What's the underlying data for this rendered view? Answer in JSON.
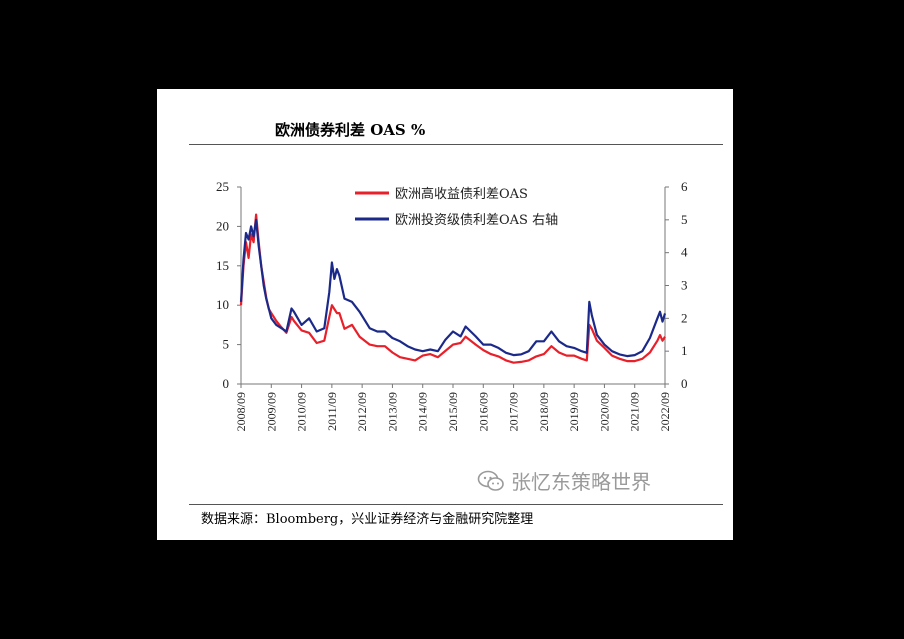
{
  "page": {
    "title": "欧洲债券利差 OAS %",
    "source": "数据来源：Bloomberg，兴业证券经济与金融研究院整理",
    "watermark": "张忆东策略世界"
  },
  "chart_data": {
    "type": "line",
    "title": "欧洲债券利差 OAS %",
    "x_labels": [
      "2008/09",
      "2009/09",
      "2010/09",
      "2011/09",
      "2012/09",
      "2013/09",
      "2014/09",
      "2015/09",
      "2016/09",
      "2017/09",
      "2018/09",
      "2019/09",
      "2020/09",
      "2021/09",
      "2022/09"
    ],
    "y_left": {
      "ticks": [
        0,
        5,
        10,
        15,
        20,
        25
      ],
      "range": [
        0,
        25
      ]
    },
    "y_right": {
      "ticks": [
        0,
        1,
        2,
        3,
        4,
        5,
        6
      ],
      "range": [
        0,
        6
      ]
    },
    "legend_position": "top-right",
    "grid": false,
    "series": [
      {
        "name": "欧洲高收益债利差OAS",
        "axis": "left",
        "color": "#e8202a",
        "points": [
          [
            "2008/09",
            10
          ],
          [
            "2008/10",
            15
          ],
          [
            "2008/11",
            18
          ],
          [
            "2008/12",
            16
          ],
          [
            "2009/01",
            19
          ],
          [
            "2009/02",
            18
          ],
          [
            "2009/03",
            21.5
          ],
          [
            "2009/04",
            18
          ],
          [
            "2009/05",
            15
          ],
          [
            "2009/06",
            13
          ],
          [
            "2009/07",
            11
          ],
          [
            "2009/08",
            9.5
          ],
          [
            "2009/09",
            9
          ],
          [
            "2009/11",
            8
          ],
          [
            "2010/01",
            7.2
          ],
          [
            "2010/03",
            6.5
          ],
          [
            "2010/05",
            8.5
          ],
          [
            "2010/06",
            8
          ],
          [
            "2010/09",
            6.8
          ],
          [
            "2010/12",
            6.5
          ],
          [
            "2011/03",
            5.2
          ],
          [
            "2011/06",
            5.5
          ],
          [
            "2011/08",
            8.5
          ],
          [
            "2011/09",
            10
          ],
          [
            "2011/10",
            9.5
          ],
          [
            "2011/11",
            9
          ],
          [
            "2011/12",
            9
          ],
          [
            "2012/02",
            7
          ],
          [
            "2012/05",
            7.5
          ],
          [
            "2012/08",
            6
          ],
          [
            "2012/12",
            5
          ],
          [
            "2013/03",
            4.8
          ],
          [
            "2013/06",
            4.8
          ],
          [
            "2013/09",
            4
          ],
          [
            "2013/12",
            3.4
          ],
          [
            "2014/03",
            3.2
          ],
          [
            "2014/06",
            3
          ],
          [
            "2014/09",
            3.6
          ],
          [
            "2014/12",
            3.8
          ],
          [
            "2015/03",
            3.4
          ],
          [
            "2015/06",
            4.2
          ],
          [
            "2015/09",
            5
          ],
          [
            "2015/12",
            5.2
          ],
          [
            "2016/02",
            6
          ],
          [
            "2016/06",
            5
          ],
          [
            "2016/09",
            4.3
          ],
          [
            "2016/12",
            3.8
          ],
          [
            "2017/03",
            3.5
          ],
          [
            "2017/06",
            3
          ],
          [
            "2017/09",
            2.7
          ],
          [
            "2017/12",
            2.8
          ],
          [
            "2018/03",
            3
          ],
          [
            "2018/06",
            3.5
          ],
          [
            "2018/09",
            3.8
          ],
          [
            "2018/12",
            4.8
          ],
          [
            "2019/03",
            4
          ],
          [
            "2019/06",
            3.6
          ],
          [
            "2019/09",
            3.6
          ],
          [
            "2019/12",
            3.2
          ],
          [
            "2020/02",
            3
          ],
          [
            "2020/03",
            7.5
          ],
          [
            "2020/04",
            7
          ],
          [
            "2020/06",
            5.5
          ],
          [
            "2020/09",
            4.6
          ],
          [
            "2020/12",
            3.6
          ],
          [
            "2021/03",
            3.2
          ],
          [
            "2021/06",
            2.9
          ],
          [
            "2021/09",
            2.9
          ],
          [
            "2021/12",
            3.2
          ],
          [
            "2022/03",
            4
          ],
          [
            "2022/06",
            5.5
          ],
          [
            "2022/07",
            6.2
          ],
          [
            "2022/08",
            5.5
          ],
          [
            "2022/09",
            6
          ]
        ]
      },
      {
        "name": "欧洲投资级债利差OAS 右轴",
        "axis": "right",
        "color": "#1b2a8a",
        "points": [
          [
            "2008/09",
            2.5
          ],
          [
            "2008/10",
            3.8
          ],
          [
            "2008/11",
            4.6
          ],
          [
            "2008/12",
            4.4
          ],
          [
            "2009/01",
            4.8
          ],
          [
            "2009/02",
            4.5
          ],
          [
            "2009/03",
            5
          ],
          [
            "2009/04",
            4.2
          ],
          [
            "2009/05",
            3.6
          ],
          [
            "2009/06",
            3
          ],
          [
            "2009/07",
            2.6
          ],
          [
            "2009/08",
            2.3
          ],
          [
            "2009/09",
            2
          ],
          [
            "2009/11",
            1.8
          ],
          [
            "2010/01",
            1.7
          ],
          [
            "2010/03",
            1.6
          ],
          [
            "2010/05",
            2.3
          ],
          [
            "2010/06",
            2.2
          ],
          [
            "2010/09",
            1.8
          ],
          [
            "2010/12",
            2
          ],
          [
            "2011/03",
            1.6
          ],
          [
            "2011/06",
            1.7
          ],
          [
            "2011/08",
            2.8
          ],
          [
            "2011/09",
            3.7
          ],
          [
            "2011/10",
            3.2
          ],
          [
            "2011/11",
            3.5
          ],
          [
            "2011/12",
            3.3
          ],
          [
            "2012/02",
            2.6
          ],
          [
            "2012/05",
            2.5
          ],
          [
            "2012/08",
            2.2
          ],
          [
            "2012/12",
            1.7
          ],
          [
            "2013/03",
            1.6
          ],
          [
            "2013/06",
            1.6
          ],
          [
            "2013/09",
            1.4
          ],
          [
            "2013/12",
            1.3
          ],
          [
            "2014/03",
            1.15
          ],
          [
            "2014/06",
            1.05
          ],
          [
            "2014/09",
            1
          ],
          [
            "2014/12",
            1.05
          ],
          [
            "2015/03",
            1
          ],
          [
            "2015/06",
            1.35
          ],
          [
            "2015/09",
            1.6
          ],
          [
            "2015/12",
            1.45
          ],
          [
            "2016/02",
            1.75
          ],
          [
            "2016/06",
            1.45
          ],
          [
            "2016/09",
            1.2
          ],
          [
            "2016/12",
            1.2
          ],
          [
            "2017/03",
            1.1
          ],
          [
            "2017/06",
            0.95
          ],
          [
            "2017/09",
            0.88
          ],
          [
            "2017/12",
            0.9
          ],
          [
            "2018/03",
            1
          ],
          [
            "2018/06",
            1.3
          ],
          [
            "2018/09",
            1.3
          ],
          [
            "2018/12",
            1.6
          ],
          [
            "2019/03",
            1.3
          ],
          [
            "2019/06",
            1.15
          ],
          [
            "2019/09",
            1.1
          ],
          [
            "2019/12",
            1
          ],
          [
            "2020/02",
            0.95
          ],
          [
            "2020/03",
            2.5
          ],
          [
            "2020/04",
            2.1
          ],
          [
            "2020/06",
            1.5
          ],
          [
            "2020/09",
            1.2
          ],
          [
            "2020/12",
            1
          ],
          [
            "2021/03",
            0.9
          ],
          [
            "2021/06",
            0.85
          ],
          [
            "2021/09",
            0.88
          ],
          [
            "2021/12",
            1
          ],
          [
            "2022/03",
            1.4
          ],
          [
            "2022/06",
            2
          ],
          [
            "2022/07",
            2.2
          ],
          [
            "2022/08",
            1.9
          ],
          [
            "2022/09",
            2.15
          ]
        ]
      }
    ]
  }
}
